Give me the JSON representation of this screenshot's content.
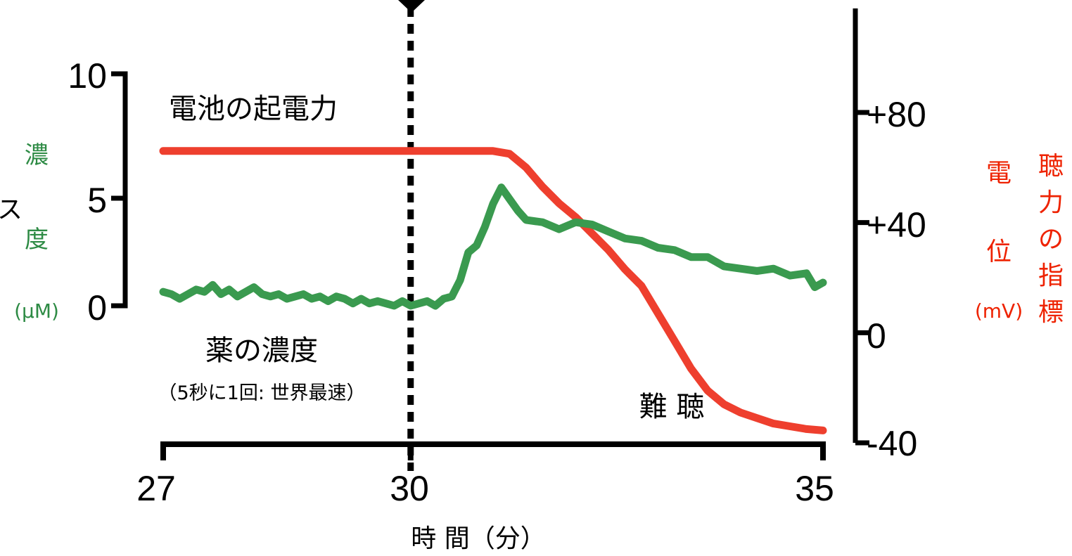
{
  "chart_data": {
    "type": "line",
    "x_axis": {
      "ticks": [
        "27",
        "30",
        "35"
      ],
      "tick_values": [
        27,
        30,
        35
      ],
      "range": [
        27,
        35
      ],
      "label": "時 間（分）"
    },
    "y_left": {
      "ticks": [
        "0",
        "5",
        "10"
      ],
      "tick_values": [
        0,
        5,
        10
      ],
      "range": [
        0,
        10
      ],
      "label": "濃度",
      "unit": "(μM)",
      "partial_label": "ス"
    },
    "y_right": {
      "ticks": [
        "+80",
        "+40",
        "0",
        "-40"
      ],
      "tick_values": [
        80,
        40,
        0,
        -40
      ],
      "range": [
        -40,
        80
      ],
      "label_potential": "電位",
      "label_hearing": "聴力の指標",
      "unit": "(mV)"
    },
    "marker_x": 30,
    "series": [
      {
        "name": "薬の濃度",
        "sublabel": "（5秒に1回: 世界最速）",
        "axis": "left",
        "color": "#3a9a4f",
        "x": [
          27.0,
          27.1,
          27.2,
          27.3,
          27.4,
          27.5,
          27.6,
          27.7,
          27.8,
          27.9,
          28.0,
          28.1,
          28.2,
          28.3,
          28.4,
          28.5,
          28.6,
          28.7,
          28.8,
          28.9,
          29.0,
          29.1,
          29.2,
          29.3,
          29.4,
          29.5,
          29.6,
          29.7,
          29.8,
          29.9,
          30.0,
          30.1,
          30.2,
          30.3,
          30.4,
          30.5,
          30.6,
          30.7,
          30.8,
          30.9,
          31.0,
          31.1,
          31.2,
          31.3,
          31.4,
          31.6,
          31.8,
          32.0,
          32.2,
          32.4,
          32.6,
          32.8,
          33.0,
          33.2,
          33.4,
          33.6,
          33.8,
          34.0,
          34.2,
          34.4,
          34.6,
          34.8,
          34.9,
          35.0
        ],
        "y": [
          0.6,
          0.5,
          0.3,
          0.5,
          0.7,
          0.6,
          0.9,
          0.5,
          0.7,
          0.4,
          0.6,
          0.8,
          0.5,
          0.4,
          0.5,
          0.3,
          0.4,
          0.5,
          0.3,
          0.4,
          0.2,
          0.4,
          0.3,
          0.1,
          0.3,
          0.1,
          0.2,
          0.1,
          0.0,
          0.2,
          0.0,
          0.1,
          0.2,
          0.0,
          0.3,
          0.4,
          1.1,
          2.3,
          2.6,
          3.4,
          4.4,
          5.1,
          4.6,
          4.1,
          3.7,
          3.6,
          3.3,
          3.6,
          3.5,
          3.2,
          2.9,
          2.8,
          2.5,
          2.4,
          2.1,
          2.1,
          1.7,
          1.6,
          1.5,
          1.6,
          1.3,
          1.4,
          0.8,
          1.0
        ]
      },
      {
        "name": "電池の起電力",
        "axis": "right",
        "color": "#ee3f2e",
        "x": [
          27.0,
          28.0,
          29.0,
          30.0,
          30.5,
          31.0,
          31.2,
          31.4,
          31.6,
          31.8,
          32.0,
          32.2,
          32.4,
          32.6,
          32.8,
          33.0,
          33.2,
          33.4,
          33.6,
          33.8,
          34.0,
          34.2,
          34.4,
          34.6,
          34.8,
          35.0
        ],
        "y": [
          66,
          66,
          66,
          66,
          66,
          66,
          65,
          60,
          53,
          47,
          42,
          36,
          30,
          23,
          17,
          7,
          -3,
          -13,
          -21,
          -26,
          -29,
          -31,
          -33,
          -34,
          -35,
          -35.5
        ]
      }
    ],
    "annotations": {
      "emf_label": "電池の起電力",
      "drug_label": "薬の濃度",
      "drug_sublabel": "（5秒に1回: 世界最速）",
      "hearing_loss": "難 聴"
    }
  }
}
